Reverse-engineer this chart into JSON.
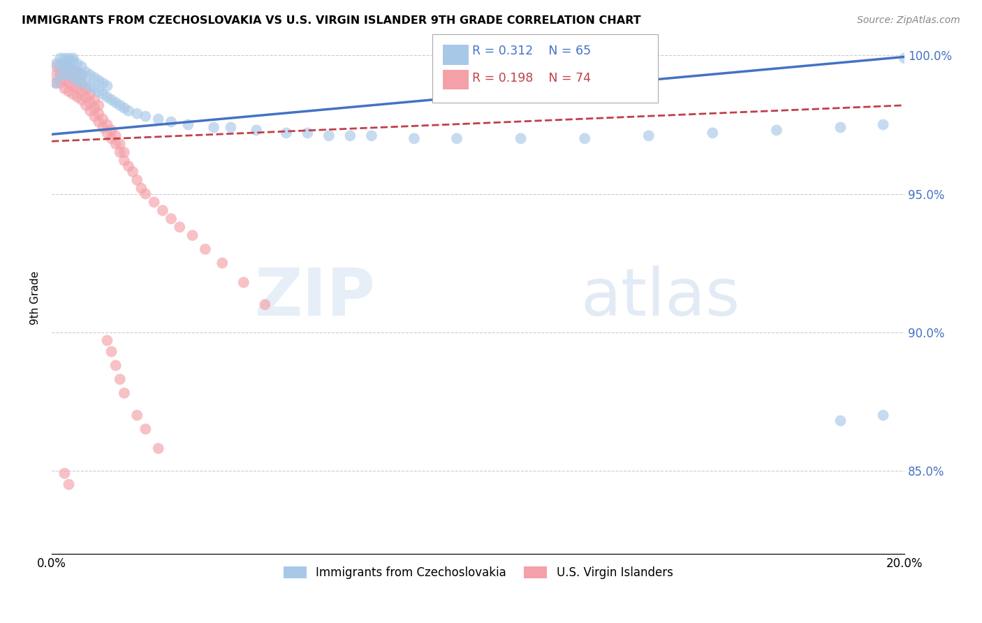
{
  "title": "IMMIGRANTS FROM CZECHOSLOVAKIA VS U.S. VIRGIN ISLANDER 9TH GRADE CORRELATION CHART",
  "source": "Source: ZipAtlas.com",
  "ylabel": "9th Grade",
  "xlim": [
    0.0,
    0.2
  ],
  "ylim": [
    0.82,
    1.005
  ],
  "yticks": [
    0.85,
    0.9,
    0.95,
    1.0
  ],
  "ytick_labels": [
    "85.0%",
    "90.0%",
    "95.0%",
    "100.0%"
  ],
  "xticks": [
    0.0,
    0.05,
    0.1,
    0.15,
    0.2
  ],
  "xtick_labels": [
    "0.0%",
    "",
    "",
    "",
    "20.0%"
  ],
  "legend_blue_label": "Immigrants from Czechoslovakia",
  "legend_pink_label": "U.S. Virgin Islanders",
  "blue_R": "R = 0.312",
  "blue_N": "N = 65",
  "pink_R": "R = 0.198",
  "pink_N": "N = 74",
  "blue_color": "#a8c8e8",
  "pink_color": "#f4a0a8",
  "blue_line_color": "#4472c4",
  "pink_line_color": "#c0404a",
  "watermark_zip": "ZIP",
  "watermark_atlas": "atlas",
  "blue_x": [
    0.001,
    0.001,
    0.002,
    0.002,
    0.002,
    0.003,
    0.003,
    0.003,
    0.003,
    0.004,
    0.004,
    0.004,
    0.004,
    0.005,
    0.005,
    0.005,
    0.005,
    0.006,
    0.006,
    0.006,
    0.007,
    0.007,
    0.007,
    0.008,
    0.008,
    0.009,
    0.009,
    0.01,
    0.01,
    0.011,
    0.011,
    0.012,
    0.012,
    0.013,
    0.013,
    0.014,
    0.015,
    0.016,
    0.017,
    0.018,
    0.02,
    0.022,
    0.025,
    0.028,
    0.032,
    0.038,
    0.042,
    0.048,
    0.055,
    0.06,
    0.065,
    0.07,
    0.075,
    0.085,
    0.095,
    0.11,
    0.125,
    0.14,
    0.155,
    0.17,
    0.185,
    0.195,
    0.2,
    0.185,
    0.195
  ],
  "blue_y": [
    0.99,
    0.997,
    0.993,
    0.997,
    0.999,
    0.993,
    0.997,
    0.999,
    0.996,
    0.993,
    0.996,
    0.998,
    0.999,
    0.992,
    0.995,
    0.998,
    0.999,
    0.991,
    0.994,
    0.997,
    0.99,
    0.993,
    0.996,
    0.99,
    0.994,
    0.989,
    0.993,
    0.988,
    0.992,
    0.987,
    0.991,
    0.986,
    0.99,
    0.985,
    0.989,
    0.984,
    0.983,
    0.982,
    0.981,
    0.98,
    0.979,
    0.978,
    0.977,
    0.976,
    0.975,
    0.974,
    0.974,
    0.973,
    0.972,
    0.972,
    0.971,
    0.971,
    0.971,
    0.97,
    0.97,
    0.97,
    0.97,
    0.971,
    0.972,
    0.973,
    0.974,
    0.975,
    0.999,
    0.868,
    0.87
  ],
  "pink_x": [
    0.001,
    0.001,
    0.001,
    0.002,
    0.002,
    0.002,
    0.003,
    0.003,
    0.003,
    0.003,
    0.004,
    0.004,
    0.004,
    0.004,
    0.005,
    0.005,
    0.005,
    0.005,
    0.006,
    0.006,
    0.006,
    0.006,
    0.007,
    0.007,
    0.007,
    0.007,
    0.008,
    0.008,
    0.008,
    0.009,
    0.009,
    0.009,
    0.01,
    0.01,
    0.01,
    0.011,
    0.011,
    0.011,
    0.012,
    0.012,
    0.013,
    0.013,
    0.014,
    0.014,
    0.015,
    0.015,
    0.016,
    0.016,
    0.017,
    0.017,
    0.018,
    0.019,
    0.02,
    0.021,
    0.022,
    0.024,
    0.026,
    0.028,
    0.03,
    0.033,
    0.036,
    0.04,
    0.045,
    0.05,
    0.013,
    0.014,
    0.015,
    0.016,
    0.017,
    0.02,
    0.022,
    0.025,
    0.003,
    0.004
  ],
  "pink_y": [
    0.99,
    0.993,
    0.996,
    0.99,
    0.993,
    0.996,
    0.988,
    0.991,
    0.994,
    0.997,
    0.987,
    0.99,
    0.993,
    0.996,
    0.986,
    0.989,
    0.992,
    0.995,
    0.985,
    0.988,
    0.991,
    0.994,
    0.984,
    0.987,
    0.99,
    0.993,
    0.982,
    0.985,
    0.988,
    0.98,
    0.983,
    0.986,
    0.978,
    0.981,
    0.984,
    0.976,
    0.979,
    0.982,
    0.974,
    0.977,
    0.972,
    0.975,
    0.97,
    0.973,
    0.968,
    0.971,
    0.965,
    0.968,
    0.962,
    0.965,
    0.96,
    0.958,
    0.955,
    0.952,
    0.95,
    0.947,
    0.944,
    0.941,
    0.938,
    0.935,
    0.93,
    0.925,
    0.918,
    0.91,
    0.897,
    0.893,
    0.888,
    0.883,
    0.878,
    0.87,
    0.865,
    0.858,
    0.849,
    0.845
  ]
}
